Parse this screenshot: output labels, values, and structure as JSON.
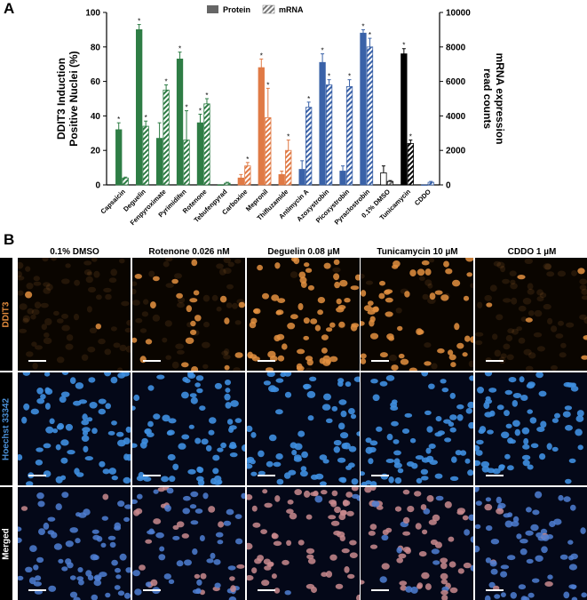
{
  "panels": {
    "a": "A",
    "b": "B"
  },
  "legend": {
    "protein": "Protein",
    "mrna": "mRNA"
  },
  "significance_marker": "*",
  "chart_data": {
    "type": "bar",
    "ylabel_left": [
      "DDIT3 Induction",
      "Positive Nuclei (%)"
    ],
    "ylabel_right": [
      "mRNA expression",
      "read counts"
    ],
    "ylim_left": [
      0,
      100
    ],
    "ylim_right": [
      0,
      10000
    ],
    "yticks_left": [
      "0",
      "20",
      "40",
      "60",
      "80",
      "100"
    ],
    "yticks_right": [
      "0",
      "2000",
      "4000",
      "6000",
      "8000",
      "10000"
    ],
    "legend_position": "top-center",
    "categories": [
      "Capsaicin",
      "Deguelin",
      "Fenpyroximate",
      "Pyrimidifen",
      "Rotenone",
      "Tebufenpyrad",
      "Carboxine",
      "Mepronil",
      "Thifluzamide",
      "Antimycin A",
      "Azoxystrobin",
      "Picoxystrobin",
      "Pyraclostrobin",
      "0.1% DMSO",
      "Tunicamycin",
      "CDDO"
    ],
    "category_colors": [
      "#2e7d45",
      "#2e7d45",
      "#2e7d45",
      "#2e7d45",
      "#2e7d45",
      "#2e7d45",
      "#e07a45",
      "#e07a45",
      "#e07a45",
      "#3a62a8",
      "#3a62a8",
      "#3a62a8",
      "#3a62a8",
      "#ffffff",
      "#000000",
      "#3a62a8"
    ],
    "series": [
      {
        "name": "Protein",
        "axis": "left",
        "values": [
          32,
          90,
          27,
          73,
          36,
          0,
          4,
          68,
          6,
          9,
          71,
          8,
          88,
          7,
          76,
          0
        ],
        "errors": [
          4,
          3,
          9,
          4,
          5,
          0,
          2,
          5,
          2,
          5,
          5,
          3,
          2,
          4,
          3,
          0
        ],
        "significant": [
          true,
          true,
          false,
          true,
          true,
          false,
          false,
          true,
          false,
          false,
          true,
          false,
          true,
          false,
          true,
          false
        ]
      },
      {
        "name": "mRNA",
        "axis": "right",
        "values": [
          400,
          3400,
          5500,
          2600,
          4700,
          100,
          1100,
          3900,
          2000,
          4500,
          5800,
          5700,
          8000,
          200,
          2400,
          150
        ],
        "errors": [
          50,
          300,
          300,
          1700,
          300,
          50,
          200,
          1700,
          600,
          300,
          300,
          400,
          500,
          50,
          200,
          50
        ],
        "significant": [
          false,
          true,
          true,
          true,
          true,
          false,
          true,
          true,
          true,
          true,
          true,
          true,
          true,
          false,
          true,
          false
        ]
      }
    ]
  },
  "microscopy": {
    "columns": [
      "0.1% DMSO",
      "Rotenone 0.026 nM",
      "Deguelin 0.08 µM",
      "Tunicamycin 10 µM",
      "CDDO 1 µM"
    ],
    "rows": [
      {
        "label": "DDIT3",
        "color": "#e08a3c",
        "cell_color": "#e3913f",
        "cell_fraction": [
          0.05,
          0.35,
          0.95,
          0.8,
          0.05
        ]
      },
      {
        "label": "Hoechst 33342",
        "color": "#4a8fd6",
        "cell_color": "#3f8fe0",
        "cell_fraction": [
          1,
          1,
          1,
          1,
          1
        ]
      },
      {
        "label": "Merged",
        "color": "#ffffff",
        "cell_color": "#5a7fd8",
        "cell_fraction": [
          1,
          1,
          1,
          1,
          1
        ]
      }
    ]
  }
}
